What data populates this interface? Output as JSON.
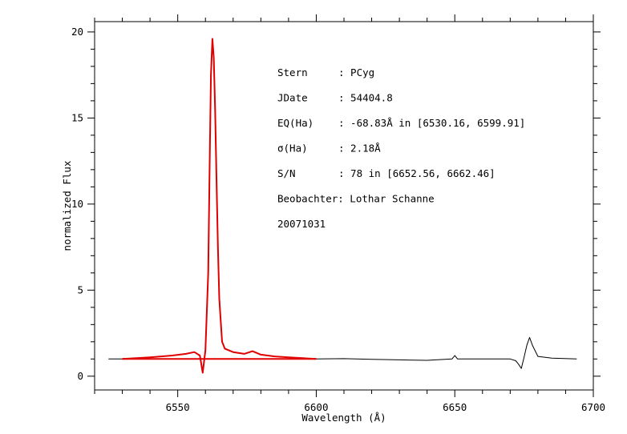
{
  "chart_data": {
    "type": "line",
    "xlabel": "Wavelength (Å)",
    "ylabel": "normalized Flux",
    "xlim": [
      6520,
      6700
    ],
    "ylim": [
      -0.8,
      20.6
    ],
    "x_ticks": [
      6550,
      6600,
      6650,
      6700
    ],
    "y_ticks": [
      0,
      5,
      10,
      15,
      20
    ],
    "grid": false,
    "annotations": [
      {
        "label": "Stern",
        "value": ": PCyg"
      },
      {
        "label": "JDate",
        "value": ": 54404.8"
      },
      {
        "label": "EQ(Ha)",
        "value": ": -68.83Å in [6530.16, 6599.91]"
      },
      {
        "label": "σ(Ha)",
        "value": ": 2.18Å"
      },
      {
        "label": "S/N",
        "value": ": 78 in [6652.56, 6662.46]"
      },
      {
        "label": "Beobachter: Lothar Schanne",
        "value": ""
      },
      {
        "label": "20071031",
        "value": ""
      }
    ],
    "series": [
      {
        "color": "#000000",
        "x": [
          6525,
          6530,
          6540,
          6548,
          6553,
          6556,
          6558,
          6559,
          6560,
          6561,
          6561.5,
          6562,
          6562.5,
          6563,
          6563.5,
          6564,
          6564.5,
          6565,
          6566,
          6567,
          6570,
          6574,
          6577,
          6580,
          6585,
          6590,
          6600,
          6610,
          6620,
          6630,
          6640,
          6649,
          6650,
          6651,
          6660,
          6670,
          6672,
          6673,
          6674,
          6675,
          6676,
          6677,
          6678,
          6680,
          6685,
          6694
        ],
        "values": [
          1.0,
          1.0,
          1.1,
          1.2,
          1.3,
          1.4,
          1.2,
          0.2,
          1.5,
          6.0,
          12.0,
          17.5,
          19.6,
          18.5,
          15.5,
          11.5,
          7.5,
          4.5,
          2.0,
          1.6,
          1.4,
          1.3,
          1.45,
          1.25,
          1.15,
          1.1,
          1.0,
          1.02,
          0.98,
          0.95,
          0.92,
          1.0,
          1.2,
          1.0,
          1.0,
          1.0,
          0.9,
          0.7,
          0.45,
          1.1,
          1.8,
          2.25,
          1.8,
          1.15,
          1.05,
          1.0
        ]
      },
      {
        "color": "#e00000",
        "x": [
          6530,
          6540,
          6548,
          6553,
          6556,
          6558,
          6559,
          6560,
          6561,
          6561.5,
          6562,
          6562.5,
          6563,
          6563.5,
          6564,
          6564.5,
          6565,
          6566,
          6567,
          6570,
          6574,
          6577,
          6580,
          6585,
          6590,
          6600
        ],
        "values": [
          1.0,
          1.1,
          1.2,
          1.3,
          1.4,
          1.2,
          0.2,
          1.5,
          6.0,
          12.0,
          17.5,
          19.6,
          18.5,
          15.5,
          11.5,
          7.5,
          4.5,
          2.0,
          1.6,
          1.4,
          1.3,
          1.45,
          1.25,
          1.15,
          1.1,
          1.0
        ]
      },
      {
        "color": "#e00000",
        "x": [
          6530,
          6600
        ],
        "values": [
          1.0,
          1.0
        ]
      }
    ]
  }
}
